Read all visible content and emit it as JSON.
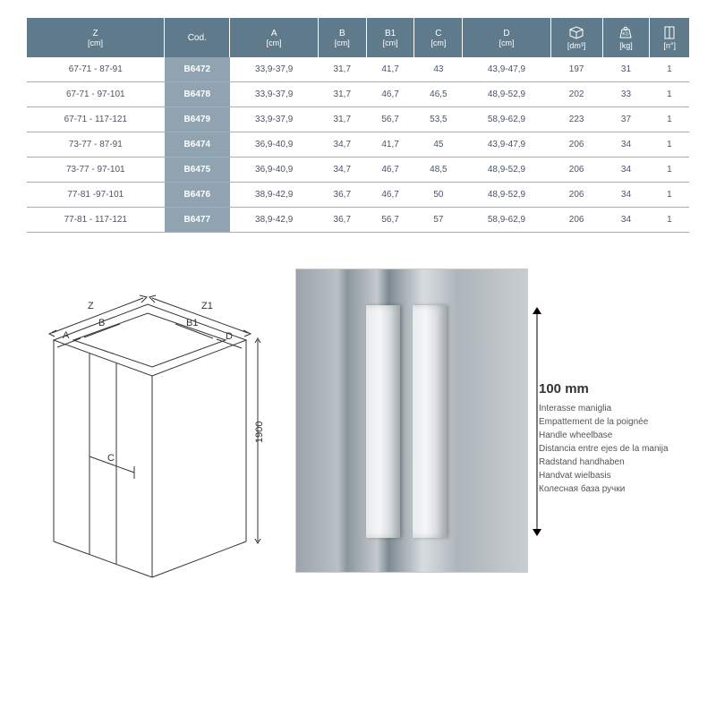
{
  "table": {
    "header_bg": "#5f7a8a",
    "code_bg": "#8fa3b0",
    "columns": [
      {
        "label": "Z",
        "unit": "[cm]"
      },
      {
        "label": "Cod.",
        "unit": ""
      },
      {
        "label": "A",
        "unit": "[cm]"
      },
      {
        "label": "B",
        "unit": "[cm]"
      },
      {
        "label": "B1",
        "unit": "[cm]"
      },
      {
        "label": "C",
        "unit": "[cm]"
      },
      {
        "label": "D",
        "unit": "[cm]"
      },
      {
        "label": "",
        "unit": "[dm³]",
        "icon": "box"
      },
      {
        "label": "",
        "unit": "[kg]",
        "icon": "weight"
      },
      {
        "label": "",
        "unit": "[n°]",
        "icon": "package"
      }
    ],
    "rows": [
      [
        "67-71 - 87-91",
        "B6472",
        "33,9-37,9",
        "31,7",
        "41,7",
        "43",
        "43,9-47,9",
        "197",
        "31",
        "1"
      ],
      [
        "67-71 - 97-101",
        "B6478",
        "33,9-37,9",
        "31,7",
        "46,7",
        "46,5",
        "48,9-52,9",
        "202",
        "33",
        "1"
      ],
      [
        "67-71 - 117-121",
        "B6479",
        "33,9-37,9",
        "31,7",
        "56,7",
        "53,5",
        "58,9-62,9",
        "223",
        "37",
        "1"
      ],
      [
        "73-77 - 87-91",
        "B6474",
        "36,9-40,9",
        "34,7",
        "41,7",
        "45",
        "43,9-47,9",
        "206",
        "34",
        "1"
      ],
      [
        "73-77 - 97-101",
        "B6475",
        "36,9-40,9",
        "34,7",
        "46,7",
        "48,5",
        "48,9-52,9",
        "206",
        "34",
        "1"
      ],
      [
        "77-81 -97-101",
        "B6476",
        "38,9-42,9",
        "36,7",
        "46,7",
        "50",
        "48,9-52,9",
        "206",
        "34",
        "1"
      ],
      [
        "77-81 - 117-121",
        "B6477",
        "38,9-42,9",
        "36,7",
        "56,7",
        "57",
        "58,9-62,9",
        "206",
        "34",
        "1"
      ]
    ]
  },
  "diagram": {
    "labels": {
      "Z": "Z",
      "Z1": "Z1",
      "A": "A",
      "B": "B",
      "B1": "B1",
      "D": "D",
      "C": "C",
      "height": "1900"
    },
    "stroke": "#333333"
  },
  "handle": {
    "value": "100 mm",
    "labels": [
      "Interasse maniglia",
      "Empattement de la poignée",
      "Handle wheelbase",
      "Distancia entre ejes de la manija",
      "Radstand handhaben",
      "Handvat wielbasis",
      "Колесная база ручки"
    ]
  }
}
